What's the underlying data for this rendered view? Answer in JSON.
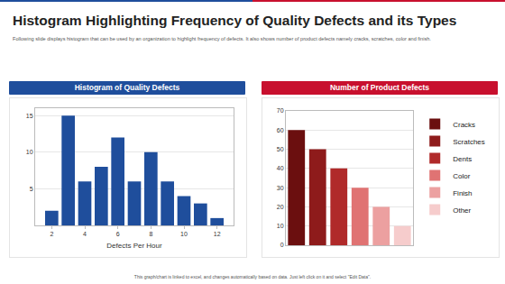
{
  "header": {
    "title": "Histogram Highlighting Frequency of Quality Defects and its Types",
    "subtitle": "Following slide displays histogram that can be used by an organization to highlight frequency of defects. It also shows number of product defects namely cracks, scratches, color and finish."
  },
  "footer": "This graph/chart is linked to excel, and changes automatically based on data. Just left click on it and select \"Edit Data\".",
  "chart_data": [
    {
      "type": "histogram",
      "title": "Histogram of Quality Defects",
      "xlabel": "Defects Per Hour",
      "bins": [
        1.5,
        2.5,
        3.5,
        4.5,
        5.5,
        6.5,
        7.5,
        8.5,
        9.5,
        10.5,
        11.5,
        12.5
      ],
      "values": [
        2,
        15,
        6,
        8,
        12,
        6,
        10,
        6,
        4,
        3,
        1
      ],
      "color": "#1f4e9c",
      "xlim": [
        1,
        13
      ],
      "xticks": [
        2,
        4,
        6,
        8,
        10,
        12
      ],
      "ylim": [
        0,
        16
      ],
      "yticks": [
        5,
        10,
        15
      ],
      "grid": true
    },
    {
      "type": "bar",
      "title": "Number of Product Defects",
      "categories": [
        "Cracks",
        "Scratches",
        "Dents",
        "Color",
        "Finish",
        "Other"
      ],
      "values": [
        60,
        50,
        40,
        30,
        20,
        10
      ],
      "colors": [
        "#6b0f0f",
        "#8e1b1b",
        "#b02a2a",
        "#e07373",
        "#eca0a0",
        "#f6cccc"
      ],
      "ylim": [
        0,
        70
      ],
      "yticks": [
        0,
        10,
        20,
        30,
        40,
        50,
        60,
        70
      ],
      "legend": "right",
      "tick_labels": "y",
      "grid": true
    }
  ]
}
